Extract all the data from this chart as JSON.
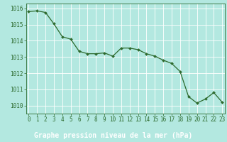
{
  "x": [
    0,
    1,
    2,
    3,
    4,
    5,
    6,
    7,
    8,
    9,
    10,
    11,
    12,
    13,
    14,
    15,
    16,
    17,
    18,
    19,
    20,
    21,
    22,
    23
  ],
  "y": [
    1015.8,
    1015.85,
    1015.75,
    1015.05,
    1014.25,
    1014.1,
    1013.35,
    1013.2,
    1013.2,
    1013.25,
    1013.05,
    1013.55,
    1013.55,
    1013.45,
    1013.2,
    1013.05,
    1012.8,
    1012.6,
    1012.1,
    1010.55,
    1010.15,
    1010.4,
    1010.8,
    1010.2
  ],
  "line_color": "#2d6a2d",
  "marker": "D",
  "marker_size": 2.0,
  "bg_color": "#b3e8e0",
  "plot_bg_color": "#b3e8e0",
  "grid_color": "#ffffff",
  "label_bg_color": "#2d6a2d",
  "xlabel": "Graphe pression niveau de la mer (hPa)",
  "xlabel_color": "#ffffff",
  "xlabel_fontsize": 7.0,
  "tick_fontsize": 5.5,
  "ylabel_ticks": [
    1010,
    1011,
    1012,
    1013,
    1014,
    1015,
    1016
  ],
  "xticks": [
    0,
    1,
    2,
    3,
    4,
    5,
    6,
    7,
    8,
    9,
    10,
    11,
    12,
    13,
    14,
    15,
    16,
    17,
    18,
    19,
    20,
    21,
    22,
    23
  ],
  "xlim": [
    -0.3,
    23.3
  ],
  "ylim": [
    1009.5,
    1016.3
  ]
}
